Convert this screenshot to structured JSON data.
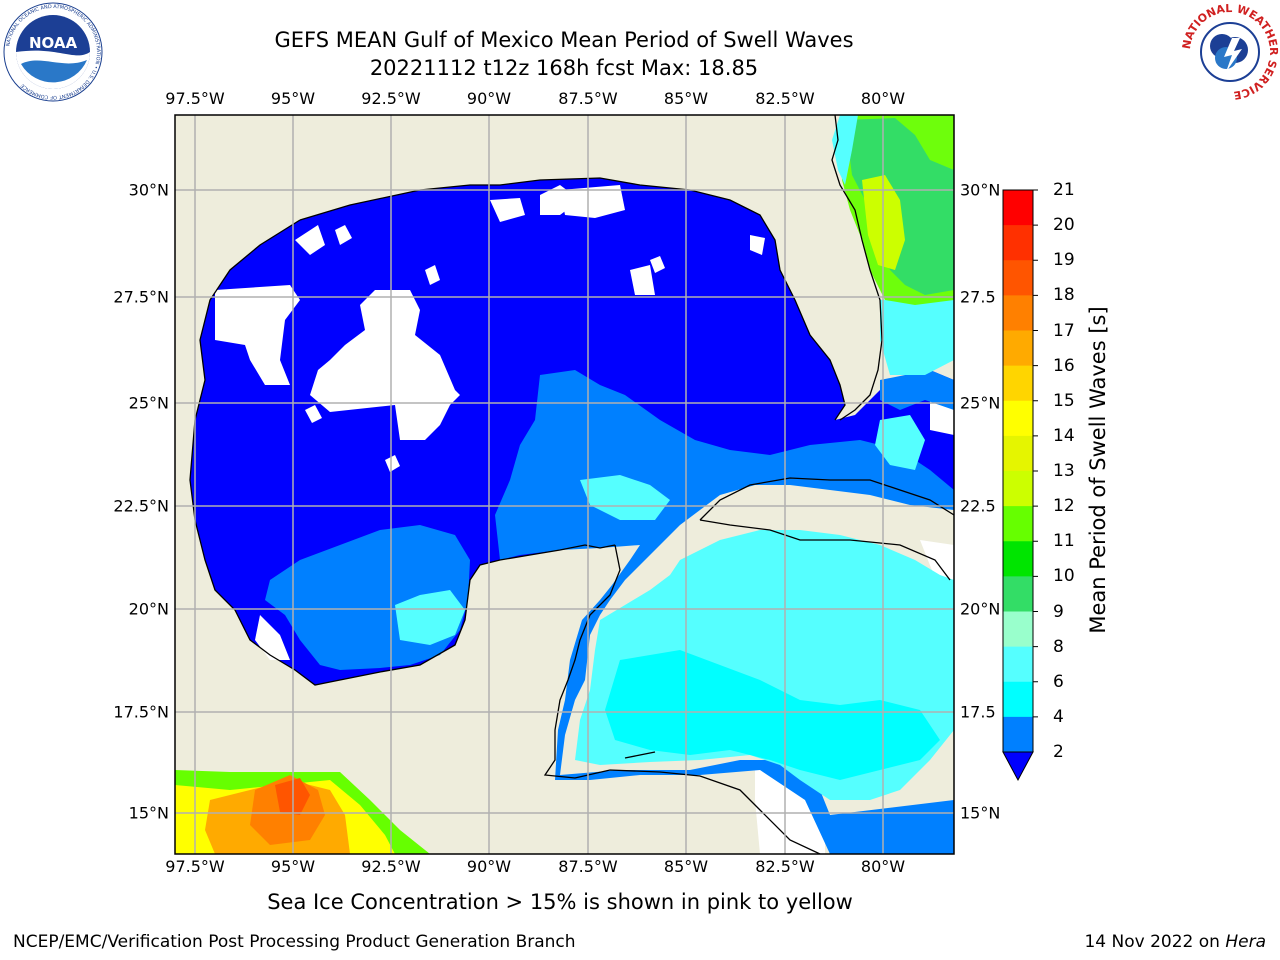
{
  "header": {
    "title_line1": "GEFS MEAN Gulf of Mexico Mean Period of Swell Waves",
    "title_line2": "20221112 t12z 168h fcst   Max: 18.85"
  },
  "logos": {
    "noaa_text": "NOAA",
    "noaa_ring_text": "NATIONAL OCEANIC AND ATMOSPHERIC ADMINISTRATION • U.S. DEPARTMENT OF COMMERCE",
    "nws_ring_text": "NATIONAL WEATHER SERVICE"
  },
  "map": {
    "lon_labels": [
      "97.5°W",
      "95°W",
      "92.5°W",
      "90°W",
      "87.5°W",
      "85°W",
      "82.5°W",
      "80°W"
    ],
    "lat_labels": [
      "30°N",
      "27.5°N",
      "25°N",
      "22.5°N",
      "20°N",
      "17.5°N",
      "15°N"
    ],
    "right_lat_labels": [
      "30°N",
      "27.5",
      "25°N",
      "22.5",
      "20°N",
      "17.5",
      "15°N"
    ]
  },
  "colorbar": {
    "title": "Mean Period of Swell Waves [s]",
    "labels": [
      "21",
      "20",
      "19",
      "18",
      "17",
      "16",
      "15",
      "14",
      "13",
      "12",
      "11",
      "10",
      "9",
      "8",
      "6",
      "4",
      "2"
    ],
    "colors": [
      "#ff0000",
      "#ff3000",
      "#ff5500",
      "#ff8000",
      "#ffaa00",
      "#ffd500",
      "#ffff00",
      "#e5f500",
      "#ccff00",
      "#66ff00",
      "#00e500",
      "#33dd66",
      "#99ffcc",
      "#55ffff",
      "#00ffff",
      "#0080ff"
    ],
    "extend_color": "#0000ff"
  },
  "colors": {
    "land": "#eeeddc",
    "deep_blue": "#0000ff",
    "mid_blue": "#0080ff",
    "cyan": "#55ffff",
    "aqua": "#00ffff",
    "green": "#66ff00",
    "yellow": "#ffff00",
    "orange": "#ff8000",
    "grid": "#b0b0b0"
  },
  "caption": "Sea Ice Concentration > 15% is shown in pink to yellow",
  "footer": {
    "left": "NCEP/EMC/Verification Post Processing Product Generation Branch",
    "right_prefix": "14 Nov 2022 on ",
    "right_host": "Hera"
  }
}
